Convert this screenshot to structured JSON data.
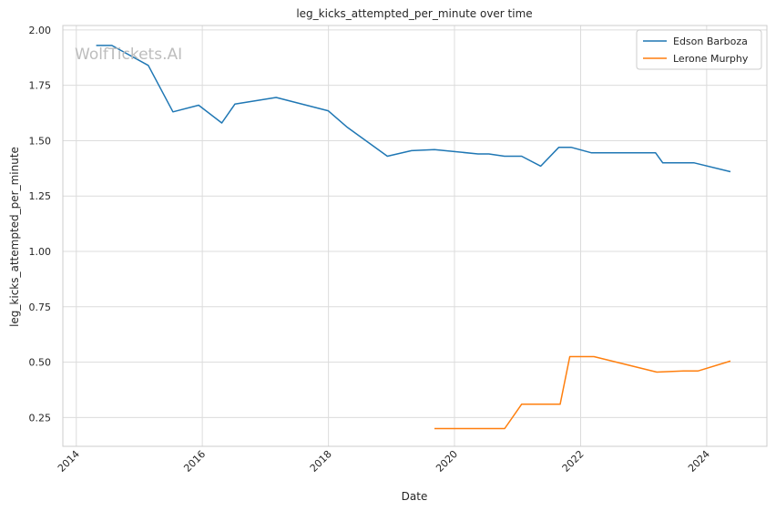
{
  "watermark": "WolfTickets.AI",
  "chart_data": {
    "type": "line",
    "title": "leg_kicks_attempted_per_minute over time",
    "xlabel": "Date",
    "ylabel": "leg_kicks_attempted_per_minute",
    "x_ticks": [
      "2014",
      "2016",
      "2018",
      "2020",
      "2022",
      "2024"
    ],
    "y_ticks": [
      "0.25",
      "0.50",
      "0.75",
      "1.00",
      "1.25",
      "1.50",
      "1.75",
      "2.00"
    ],
    "xlim": [
      "2013-10-15",
      "2024-12-15"
    ],
    "ylim": [
      0.12,
      2.02
    ],
    "grid": true,
    "legend_position": "upper right",
    "series": [
      {
        "name": "Edson Barboza",
        "color": "#1f77b4",
        "points": [
          [
            "2014-04-26",
            1.93
          ],
          [
            "2014-07-26",
            1.93
          ],
          [
            "2015-02-22",
            1.84
          ],
          [
            "2015-07-15",
            1.63
          ],
          [
            "2015-12-11",
            1.66
          ],
          [
            "2016-04-23",
            1.58
          ],
          [
            "2016-07-08",
            1.665
          ],
          [
            "2017-03-04",
            1.695
          ],
          [
            "2017-12-30",
            1.635
          ],
          [
            "2018-04-21",
            1.56
          ],
          [
            "2018-12-08",
            1.43
          ],
          [
            "2019-04-27",
            1.455
          ],
          [
            "2019-09-07",
            1.46
          ],
          [
            "2020-05-16",
            1.44
          ],
          [
            "2020-07-18",
            1.44
          ],
          [
            "2020-10-17",
            1.43
          ],
          [
            "2021-01-24",
            1.43
          ],
          [
            "2021-05-15",
            1.385
          ],
          [
            "2021-08-28",
            1.47
          ],
          [
            "2021-11-06",
            1.47
          ],
          [
            "2022-03-05",
            1.445
          ],
          [
            "2023-03-11",
            1.445
          ],
          [
            "2023-04-22",
            1.4
          ],
          [
            "2023-10-21",
            1.4
          ],
          [
            "2024-05-18",
            1.36
          ]
        ]
      },
      {
        "name": "Lerone Murphy",
        "color": "#ff7f0e",
        "points": [
          [
            "2019-09-07",
            0.2
          ],
          [
            "2020-10-18",
            0.2
          ],
          [
            "2021-01-24",
            0.31
          ],
          [
            "2021-09-04",
            0.31
          ],
          [
            "2021-10-30",
            0.525
          ],
          [
            "2022-03-19",
            0.525
          ],
          [
            "2023-03-18",
            0.455
          ],
          [
            "2023-08-19",
            0.46
          ],
          [
            "2023-11-11",
            0.46
          ],
          [
            "2024-05-18",
            0.505
          ]
        ]
      }
    ]
  }
}
